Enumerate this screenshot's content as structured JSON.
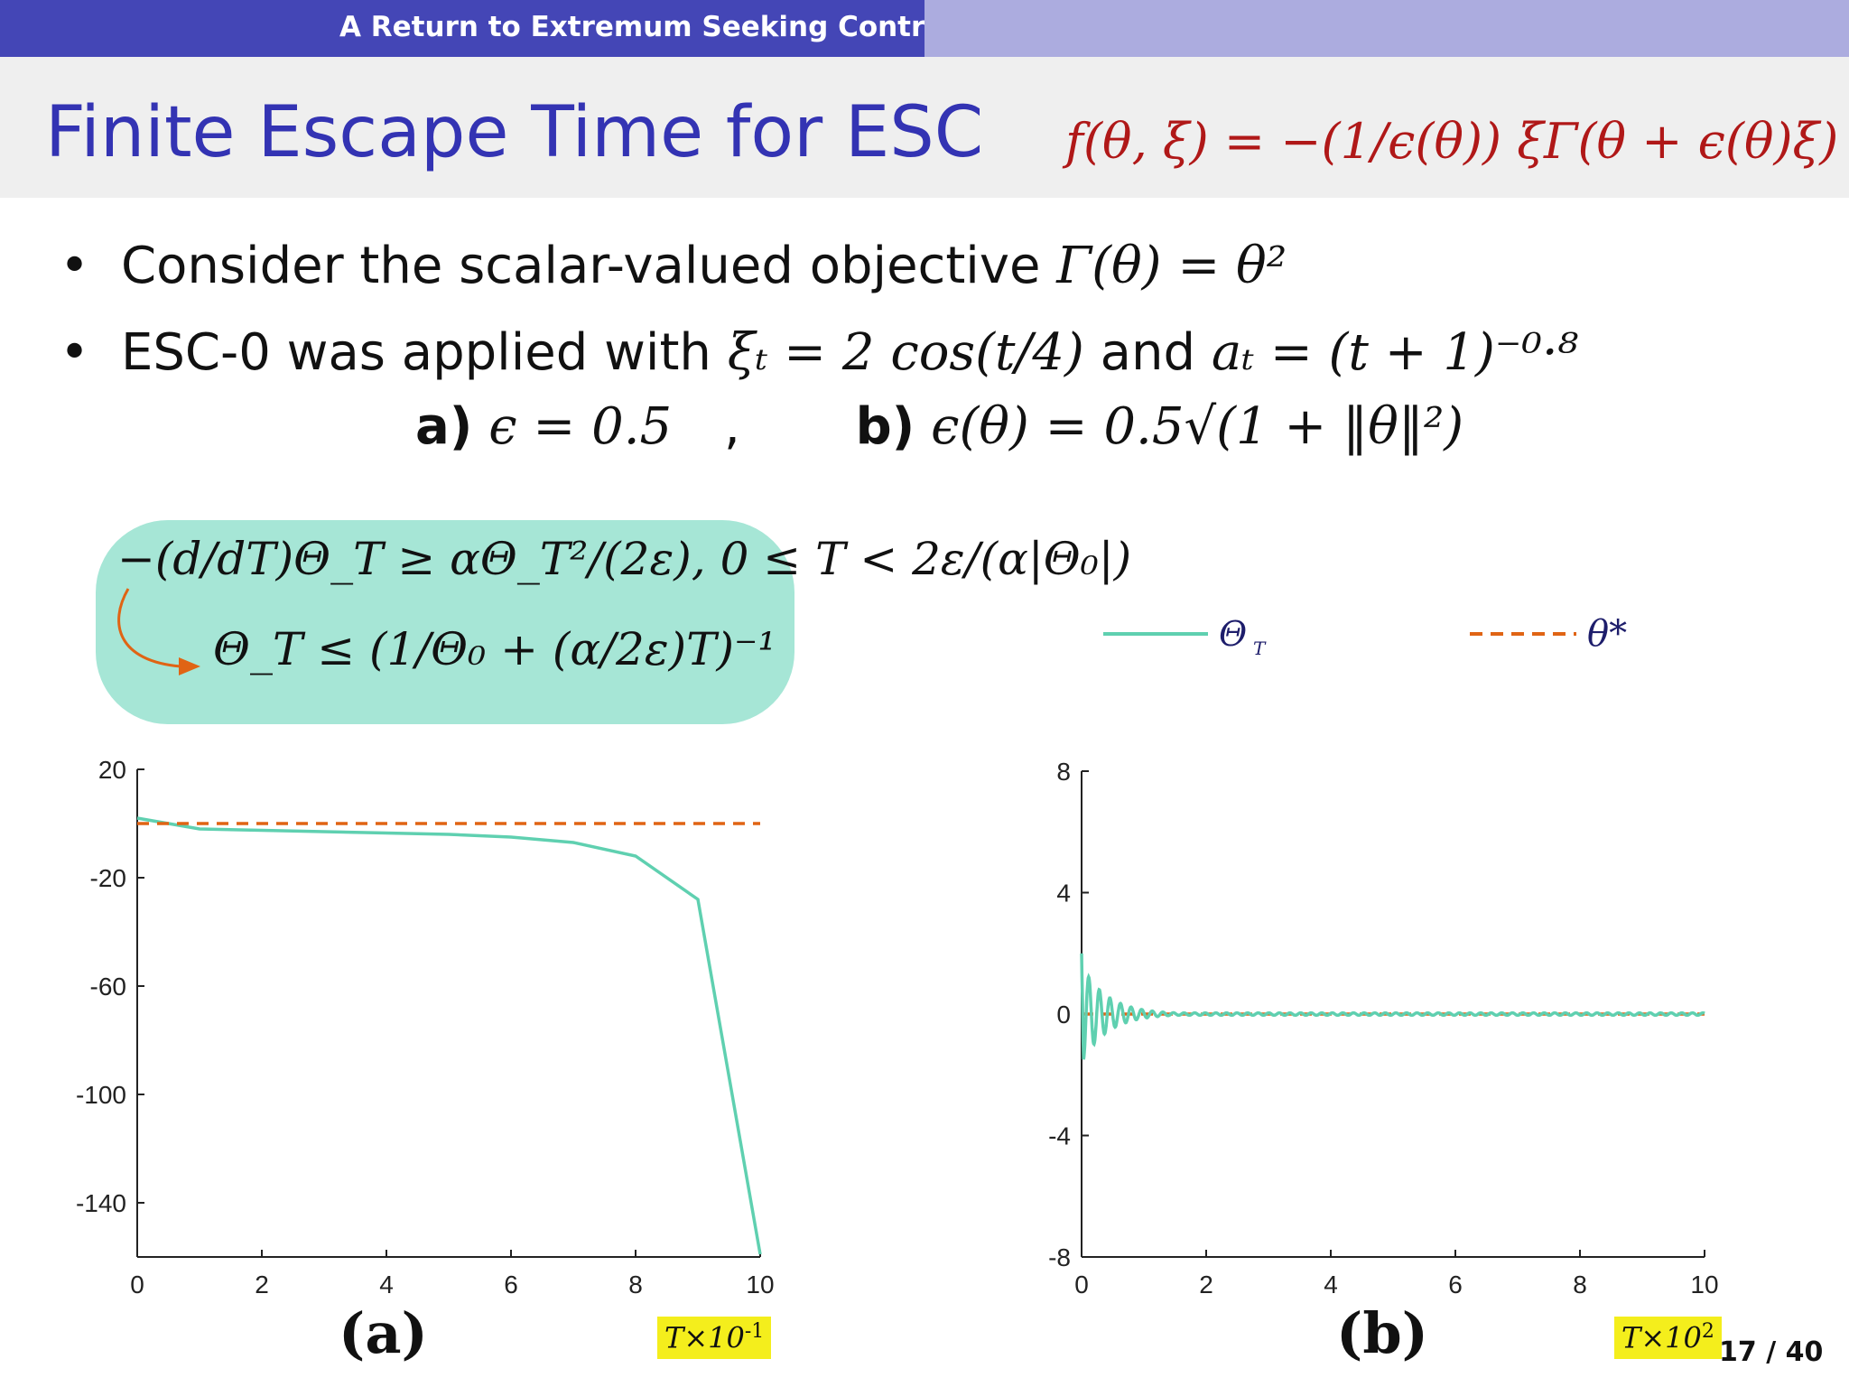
{
  "header": {
    "section_title": "A Return to Extremum Seeking Control"
  },
  "slide": {
    "title": "Finite Escape Time for ESC",
    "formula": "f(θ, ξ) = −(1/ϵ(θ)) ξΓ(θ + ϵ(θ)ξ)"
  },
  "bullets": [
    {
      "text": "Consider the scalar-valued objective",
      "math": "Γ(θ) = θ²"
    },
    {
      "text": "ESC-0 was applied with",
      "math1": "ξₜ = 2 cos(t/4)",
      "joiner": "and",
      "math2": "aₜ = (t + 1)⁻⁰·⁸"
    }
  ],
  "cases": {
    "a_label": "a)",
    "a_math": "ϵ = 0.5",
    "sep": ",",
    "b_label": "b)",
    "b_math": "ϵ(θ) = 0.5√(1 + ‖θ‖²)"
  },
  "inequality_box": {
    "line1": "−(d/dT)Θ_T ≥ αΘ_T²/(2ε),   0 ≤ T < 2ε/(α|Θ₀|)",
    "line2": "Θ_T ≤ (1/Θ₀ + (α/2ε)T)⁻¹"
  },
  "legend": {
    "series1": "Θ",
    "series1_sub": "T",
    "series2": "θ*"
  },
  "colors": {
    "theta": "#5fd0b0",
    "theta_star": "#e06414",
    "accent": "#3333b3"
  },
  "chart_data": [
    {
      "type": "line",
      "caption": "(a)",
      "xlabel_prefix": "T×10",
      "xlabel_exp": "-1",
      "xlim": [
        0,
        10
      ],
      "ylim": [
        -160,
        20
      ],
      "xticks": [
        "0",
        "2",
        "4",
        "6",
        "8",
        "10"
      ],
      "yticks": [
        "20",
        "-20",
        "-60",
        "-100",
        "-140"
      ],
      "ytick_values": [
        20,
        -20,
        -60,
        -100,
        -140
      ],
      "series": [
        {
          "x": [
            0,
            1,
            2,
            3,
            4,
            5,
            6,
            7,
            8,
            9,
            10
          ],
          "values": [
            2,
            -2,
            -2.5,
            -3,
            -3.5,
            -4,
            -5,
            -7,
            -12,
            -28,
            -159
          ]
        },
        {
          "x": [
            0,
            10
          ],
          "values": [
            0,
            0
          ],
          "style": "dashed"
        }
      ]
    },
    {
      "type": "line",
      "caption": "(b)",
      "xlabel_prefix": "T×10",
      "xlabel_exp": "2",
      "xlim": [
        0,
        10
      ],
      "ylim": [
        -8,
        8
      ],
      "xticks": [
        "0",
        "2",
        "4",
        "6",
        "8",
        "10"
      ],
      "yticks": [
        "8",
        "4",
        "0",
        "-4",
        "-8"
      ],
      "ytick_values": [
        8,
        4,
        0,
        -4,
        -8
      ],
      "damped_oscillation": {
        "start": 2,
        "min_first": -1.5,
        "period": 0.17,
        "decay": 0.9,
        "floor": 0.04
      },
      "series": [
        {
          "x": [
            0,
            10
          ],
          "values": [
            0,
            0
          ],
          "style": "dashed"
        }
      ]
    }
  ],
  "page": {
    "number": "17 / 40"
  }
}
